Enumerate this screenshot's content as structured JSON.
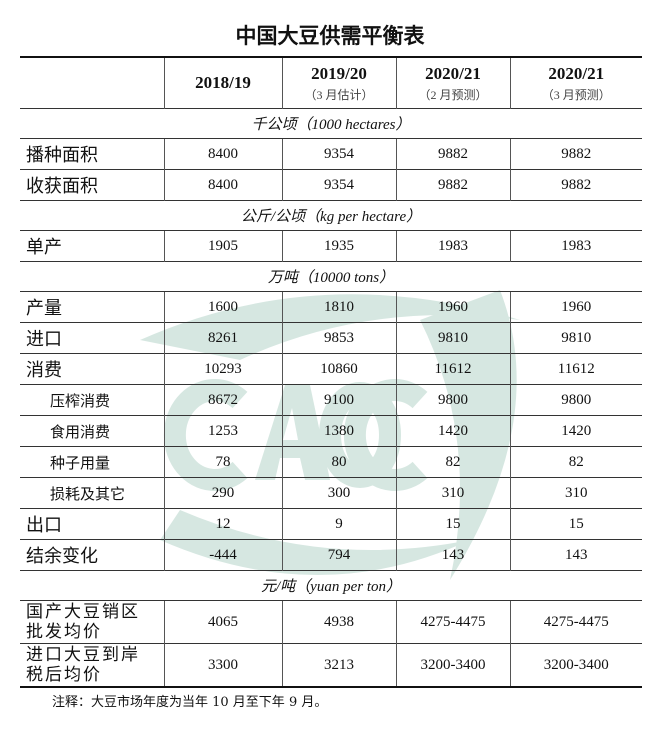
{
  "title": "中国大豆供需平衡表",
  "watermark": {
    "text": "CAOC",
    "color": "#a8cbbf"
  },
  "header": [
    {
      "year": "2018/19",
      "note": ""
    },
    {
      "year": "2019/20",
      "note": "（3 月估计）"
    },
    {
      "year": "2020/21",
      "note": "（2 月预测）"
    },
    {
      "year": "2020/21",
      "note": "（3 月预测）"
    }
  ],
  "units": {
    "area": "千公顷（1000 hectares）",
    "yield": "公斤/公顷（kg per hectare）",
    "tons": "万吨（10000 tons）",
    "price": "元/吨（yuan per ton）"
  },
  "rows": [
    {
      "label": "播种面积",
      "values": [
        "8400",
        "9354",
        "9882",
        "9882"
      ]
    },
    {
      "label": "收获面积",
      "values": [
        "8400",
        "9354",
        "9882",
        "9882"
      ]
    },
    {
      "label": "单产",
      "values": [
        "1905",
        "1935",
        "1983",
        "1983"
      ]
    },
    {
      "label": "产量",
      "values": [
        "1600",
        "1810",
        "1960",
        "1960"
      ]
    },
    {
      "label": "进口",
      "values": [
        "8261",
        "9853",
        "9810",
        "9810"
      ]
    },
    {
      "label": "消费",
      "values": [
        "10293",
        "10860",
        "11612",
        "11612"
      ]
    },
    {
      "label": "压榨消费",
      "values": [
        "8672",
        "9100",
        "9800",
        "9800"
      ]
    },
    {
      "label": "食用消费",
      "values": [
        "1253",
        "1380",
        "1420",
        "1420"
      ]
    },
    {
      "label": "种子用量",
      "values": [
        "78",
        "80",
        "82",
        "82"
      ]
    },
    {
      "label": "损耗及其它",
      "values": [
        "290",
        "300",
        "310",
        "310"
      ]
    },
    {
      "label": "出口",
      "values": [
        "12",
        "9",
        "15",
        "15"
      ]
    },
    {
      "label": "结余变化",
      "values": [
        "-444",
        "794",
        "143",
        "143"
      ]
    },
    {
      "label": "国产大豆销区批发均价",
      "values": [
        "4065",
        "4938",
        "4275-4475",
        "4275-4475"
      ]
    },
    {
      "label": "进口大豆到岸税后均价",
      "values": [
        "3300",
        "3213",
        "3200-3400",
        "3200-3400"
      ]
    }
  ],
  "note": "注释：大豆市场年度为当年 10 月至下年 9 月。"
}
